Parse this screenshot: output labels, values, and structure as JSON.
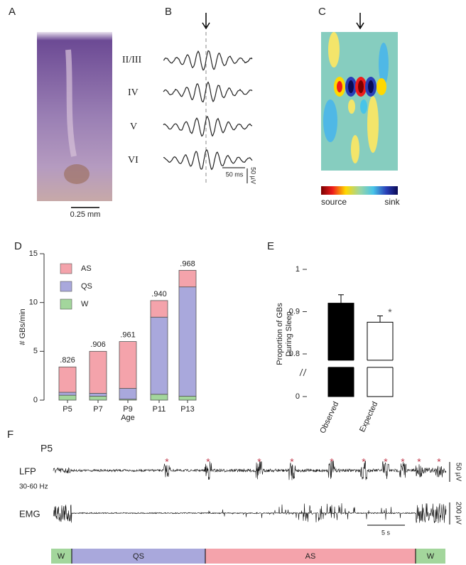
{
  "panel_labels": [
    "A",
    "B",
    "C",
    "D",
    "E",
    "F"
  ],
  "panel_a": {
    "scale_label": "0.25 mm"
  },
  "panel_b": {
    "layers": [
      "II/III",
      "IV",
      "V",
      "VI"
    ],
    "time_scale": "50 ms",
    "amplitude_scale": "50 µV"
  },
  "panel_c": {
    "source_label": "source",
    "sink_label": "sink"
  },
  "chart_data": [
    {
      "type": "bar",
      "stacked": true,
      "categories": [
        "P5",
        "P7",
        "P9",
        "P11",
        "P13"
      ],
      "x_label": "Age",
      "y_label": "# GBs/min",
      "ylim": [
        0,
        15
      ],
      "yticks": [
        0,
        5,
        10,
        15
      ],
      "legend": "upper left",
      "series": [
        {
          "name": "W",
          "color": "#a3d69c",
          "values": [
            0.5,
            0.4,
            0.1,
            0.6,
            0.4
          ]
        },
        {
          "name": "QS",
          "color": "#a9a8dc",
          "values": [
            0.3,
            0.3,
            1.1,
            7.9,
            11.2
          ]
        },
        {
          "name": "AS",
          "color": "#f4a3ab",
          "values": [
            2.6,
            4.3,
            4.8,
            1.7,
            1.7
          ]
        }
      ],
      "bar_labels": [
        ".826",
        ".906",
        ".961",
        ".940",
        ".968"
      ]
    },
    {
      "type": "bar",
      "categories": [
        "Observed",
        "Expected"
      ],
      "y_label": "Proportion of GBs During Sleep",
      "values": [
        0.92,
        0.875
      ],
      "errors": [
        0.02,
        0.015
      ],
      "colors": [
        "#000000",
        "#ffffff"
      ],
      "ylim": [
        0,
        1
      ],
      "yticks": [
        0,
        0.8,
        0.9,
        1
      ],
      "axis_break": true,
      "significance_label": "*"
    }
  ],
  "panel_f": {
    "age": "P5",
    "lfp_label": "LFP",
    "lfp_band": "30-60 Hz",
    "emg_label": "EMG",
    "lfp_scale": "50 µV",
    "emg_scale": "200 µV",
    "time_scale": "5 s",
    "event_markers": [
      "*",
      "*",
      "*",
      "*",
      "*",
      "*",
      "*",
      "*",
      "*",
      "*"
    ],
    "states": [
      "W",
      "QS",
      "AS",
      "W"
    ]
  }
}
